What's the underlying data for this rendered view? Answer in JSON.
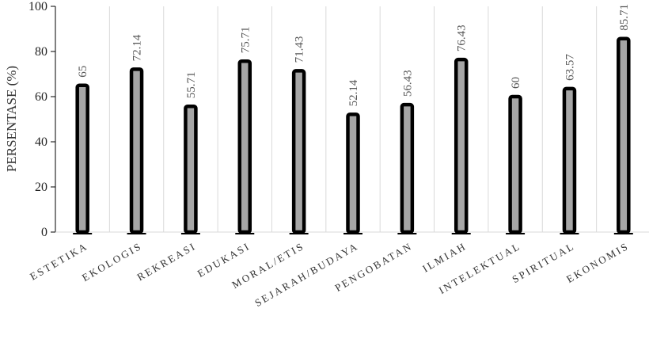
{
  "chart_data": {
    "type": "bar",
    "title": "",
    "xlabel": "",
    "ylabel": "PERSENTASE (%)",
    "ylim": [
      0,
      100
    ],
    "yticks": [
      0,
      20,
      40,
      60,
      80,
      100
    ],
    "grid": "vertical",
    "legend": "none",
    "categories": [
      "ESTETIKA",
      "EKOLOGIS",
      "REKREASI",
      "EDUKASI",
      "MORAL/ETIS",
      "SEJARAH/BUDAYA",
      "PENGOBATAN",
      "ILMIAH",
      "INTELEKTUAL",
      "SPIRITUAL",
      "EKONOMIS"
    ],
    "values": [
      65,
      72.14,
      55.71,
      75.71,
      71.43,
      52.14,
      56.43,
      76.43,
      60,
      63.57,
      85.71
    ],
    "data_labels": [
      "65",
      "72.14",
      "55.71",
      "75.71",
      "71.43",
      "52.14",
      "56.43",
      "76.43",
      "60",
      "63.57",
      "85.71"
    ],
    "colors": {
      "bar_fill": "#a6a6a6",
      "bar_outline": "#000000",
      "grid": "#d9d9d9",
      "axis": "#000000"
    }
  }
}
